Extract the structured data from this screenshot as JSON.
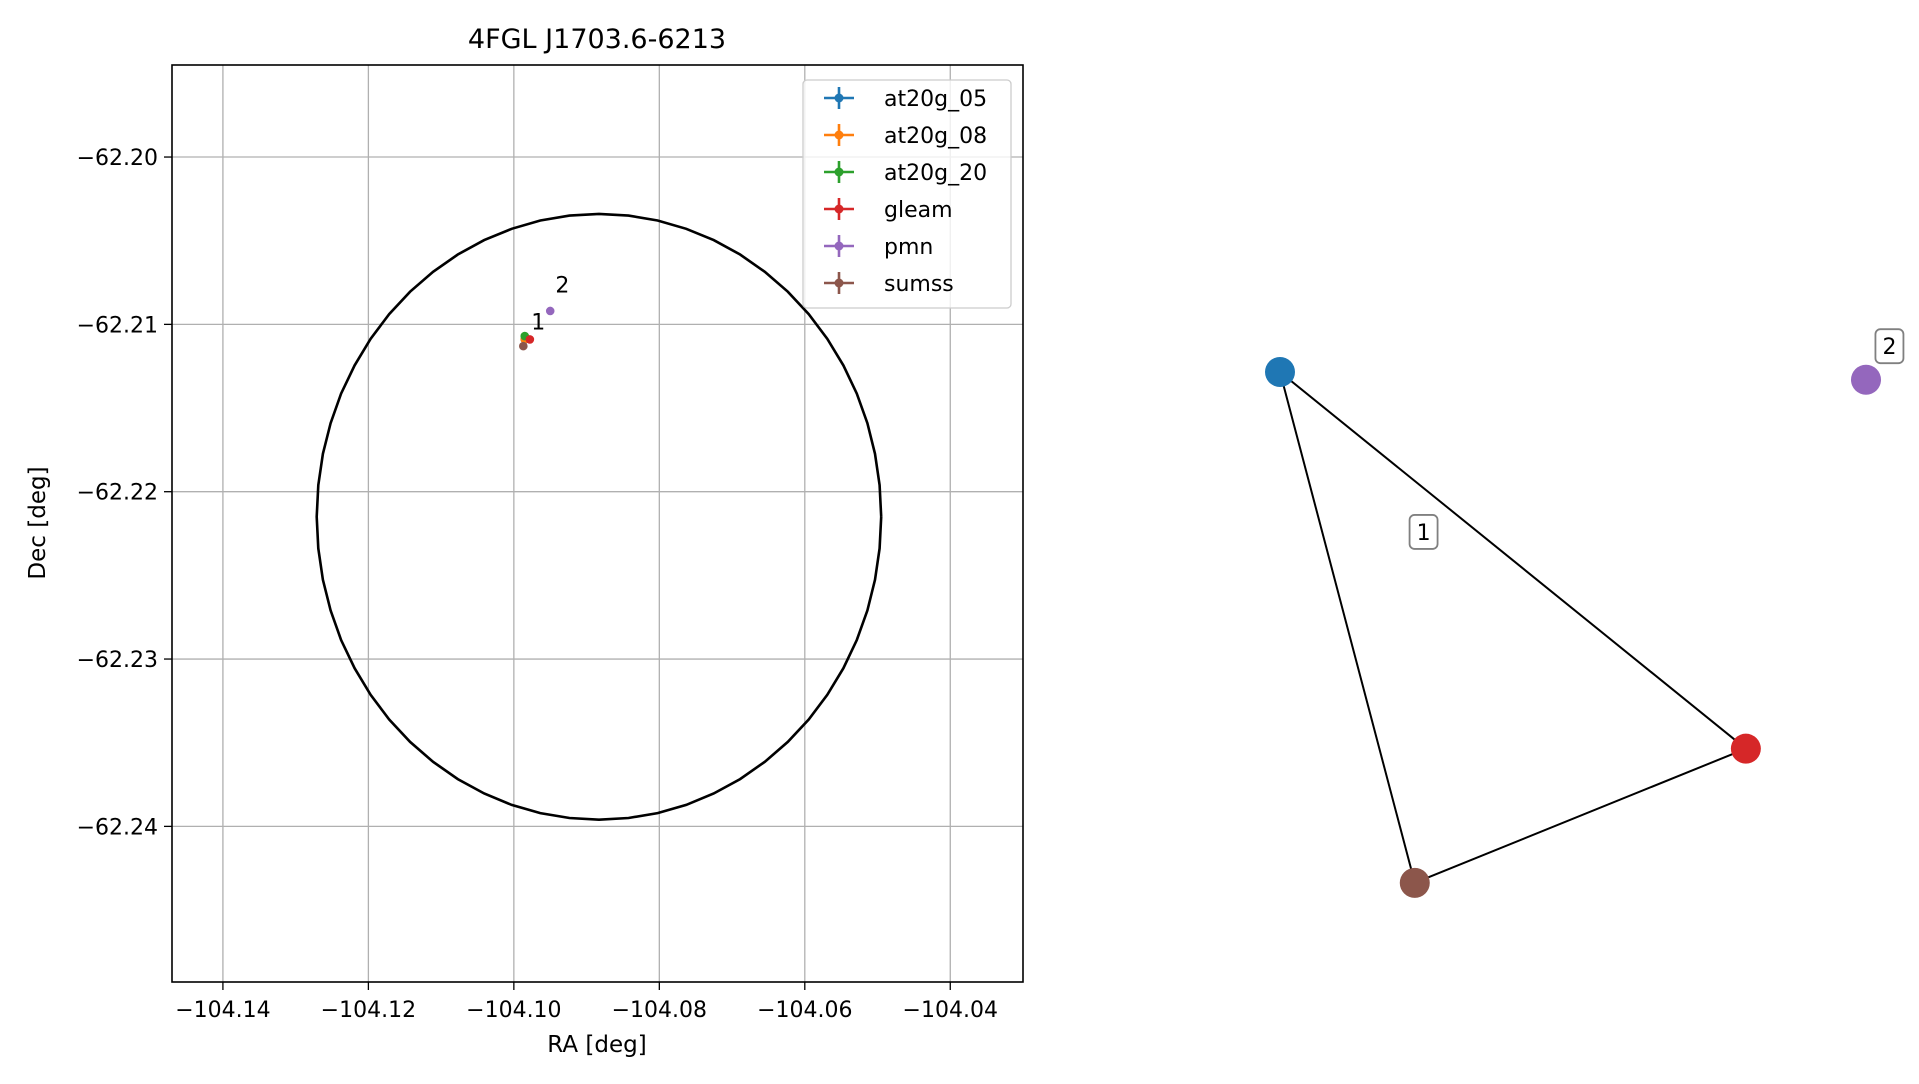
{
  "chart_data": [
    {
      "type": "scatter",
      "title": "4FGL J1703.6-6213",
      "xlabel": "RA [deg]",
      "ylabel": "Dec [deg]",
      "xlim": [
        -104.147,
        -104.03
      ],
      "ylim": [
        -62.2493,
        -62.1945
      ],
      "xticks": [
        -104.14,
        -104.12,
        -104.1,
        -104.08,
        -104.06,
        -104.04
      ],
      "xtick_labels": [
        "−104.14",
        "−104.12",
        "−104.10",
        "−104.08",
        "−104.06",
        "−104.04"
      ],
      "yticks": [
        -62.2,
        -62.21,
        -62.22,
        -62.23,
        -62.24
      ],
      "ytick_labels": [
        "−62.20",
        "−62.21",
        "−62.22",
        "−62.23",
        "−62.24"
      ],
      "grid": true,
      "legend_position": "top-right",
      "ellipse": {
        "center": [
          -104.0883,
          -62.2215
        ],
        "semi_axis_ra": 0.0388,
        "semi_axis_dec": 0.0181,
        "color": "#000000"
      },
      "series": [
        {
          "name": "at20g_05",
          "color": "#1f77b4",
          "points": [
            {
              "x": -104.0985,
              "y": -62.2109
            }
          ]
        },
        {
          "name": "at20g_08",
          "color": "#ff7f0e",
          "points": [
            {
              "x": -104.0985,
              "y": -62.2109
            }
          ]
        },
        {
          "name": "at20g_20",
          "color": "#2ca02c",
          "points": [
            {
              "x": -104.0985,
              "y": -62.2107
            }
          ]
        },
        {
          "name": "gleam",
          "color": "#d62728",
          "points": [
            {
              "x": -104.0978,
              "y": -62.2109
            }
          ]
        },
        {
          "name": "pmn",
          "color": "#9467bd",
          "points": [
            {
              "x": -104.095,
              "y": -62.2092
            }
          ]
        },
        {
          "name": "sumss",
          "color": "#8c564b",
          "points": [
            {
              "x": -104.0987,
              "y": -62.2113
            }
          ]
        }
      ],
      "annotations": [
        {
          "text": "1",
          "x": -104.0976,
          "y": -62.2103
        },
        {
          "text": "2",
          "x": -104.0943,
          "y": -62.2081
        }
      ]
    },
    {
      "type": "network",
      "nodes": [
        {
          "id": "at20g",
          "color": "#1f77b4",
          "x": 0.0,
          "y": 0.0
        },
        {
          "id": "gleam",
          "color": "#d62728",
          "x": 0.795,
          "y": 0.73
        },
        {
          "id": "sumss",
          "color": "#8c564b",
          "x": 0.23,
          "y": 0.99
        },
        {
          "id": "pmn",
          "color": "#9467bd",
          "x": 1.0,
          "y": 0.015
        }
      ],
      "edges": [
        [
          "at20g",
          "gleam"
        ],
        [
          "at20g",
          "sumss"
        ],
        [
          "sumss",
          "gleam"
        ]
      ],
      "group_labels": [
        {
          "text": "1",
          "x": 0.245,
          "y": 0.31
        },
        {
          "text": "2",
          "x": 1.04,
          "y": -0.05
        }
      ]
    }
  ]
}
